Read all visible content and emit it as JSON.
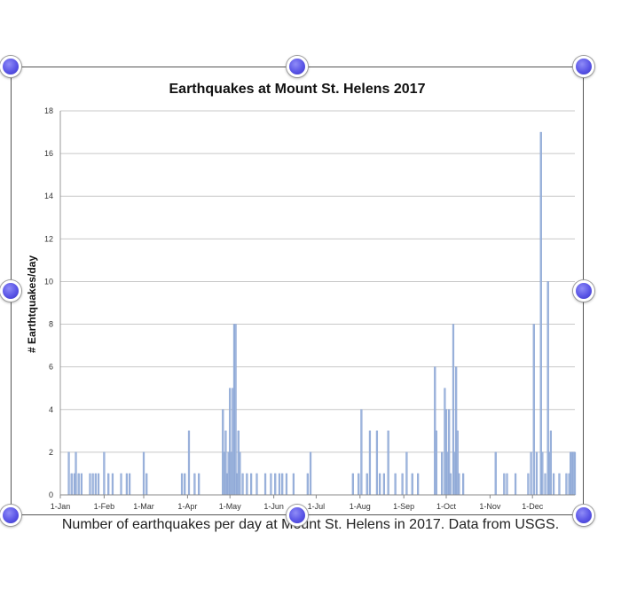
{
  "chart_data": {
    "type": "bar",
    "title": "Earthquakes at Mount St. Helens 2017",
    "xlabel": "",
    "ylabel": "# Earthtquakes/day",
    "ylim": [
      0,
      18
    ],
    "yticks": [
      0,
      2,
      4,
      6,
      8,
      10,
      12,
      14,
      16,
      18
    ],
    "xlim": [
      "2017-01-01",
      "2017-12-31"
    ],
    "xticks": [
      {
        "date": "2017-01-01",
        "label": "1-Jan"
      },
      {
        "date": "2017-02-01",
        "label": "1-Feb"
      },
      {
        "date": "2017-03-01",
        "label": "1-Mar"
      },
      {
        "date": "2017-04-01",
        "label": "1-Apr"
      },
      {
        "date": "2017-05-01",
        "label": "1-May"
      },
      {
        "date": "2017-06-01",
        "label": "1-Jun"
      },
      {
        "date": "2017-07-01",
        "label": "1-Jul"
      },
      {
        "date": "2017-08-01",
        "label": "1-Aug"
      },
      {
        "date": "2017-09-01",
        "label": "1-Sep"
      },
      {
        "date": "2017-10-01",
        "label": "1-Oct"
      },
      {
        "date": "2017-11-01",
        "label": "1-Nov"
      },
      {
        "date": "2017-12-01",
        "label": "1-Dec"
      }
    ],
    "grid": true,
    "color": "#9fb6dd",
    "points": [
      {
        "date": "2017-01-07",
        "count": 2
      },
      {
        "date": "2017-01-09",
        "count": 1
      },
      {
        "date": "2017-01-11",
        "count": 1
      },
      {
        "date": "2017-01-12",
        "count": 2
      },
      {
        "date": "2017-01-14",
        "count": 1
      },
      {
        "date": "2017-01-16",
        "count": 1
      },
      {
        "date": "2017-01-22",
        "count": 1
      },
      {
        "date": "2017-01-24",
        "count": 1
      },
      {
        "date": "2017-01-26",
        "count": 1
      },
      {
        "date": "2017-01-28",
        "count": 1
      },
      {
        "date": "2017-02-01",
        "count": 2
      },
      {
        "date": "2017-02-04",
        "count": 1
      },
      {
        "date": "2017-02-07",
        "count": 1
      },
      {
        "date": "2017-02-13",
        "count": 1
      },
      {
        "date": "2017-02-17",
        "count": 1
      },
      {
        "date": "2017-02-19",
        "count": 1
      },
      {
        "date": "2017-03-01",
        "count": 2
      },
      {
        "date": "2017-03-03",
        "count": 1
      },
      {
        "date": "2017-03-28",
        "count": 1
      },
      {
        "date": "2017-03-30",
        "count": 1
      },
      {
        "date": "2017-04-02",
        "count": 3
      },
      {
        "date": "2017-04-06",
        "count": 1
      },
      {
        "date": "2017-04-09",
        "count": 1
      },
      {
        "date": "2017-04-26",
        "count": 4
      },
      {
        "date": "2017-04-27",
        "count": 2
      },
      {
        "date": "2017-04-28",
        "count": 3
      },
      {
        "date": "2017-04-29",
        "count": 1
      },
      {
        "date": "2017-04-30",
        "count": 2
      },
      {
        "date": "2017-05-01",
        "count": 5
      },
      {
        "date": "2017-05-02",
        "count": 2
      },
      {
        "date": "2017-05-03",
        "count": 5
      },
      {
        "date": "2017-05-04",
        "count": 8
      },
      {
        "date": "2017-05-05",
        "count": 8
      },
      {
        "date": "2017-05-06",
        "count": 1
      },
      {
        "date": "2017-05-07",
        "count": 3
      },
      {
        "date": "2017-05-08",
        "count": 2
      },
      {
        "date": "2017-05-10",
        "count": 1
      },
      {
        "date": "2017-05-13",
        "count": 1
      },
      {
        "date": "2017-05-16",
        "count": 1
      },
      {
        "date": "2017-05-20",
        "count": 1
      },
      {
        "date": "2017-05-26",
        "count": 1
      },
      {
        "date": "2017-05-30",
        "count": 1
      },
      {
        "date": "2017-06-02",
        "count": 1
      },
      {
        "date": "2017-06-05",
        "count": 1
      },
      {
        "date": "2017-06-07",
        "count": 1
      },
      {
        "date": "2017-06-10",
        "count": 1
      },
      {
        "date": "2017-06-15",
        "count": 1
      },
      {
        "date": "2017-06-25",
        "count": 1
      },
      {
        "date": "2017-06-27",
        "count": 2
      },
      {
        "date": "2017-07-27",
        "count": 1
      },
      {
        "date": "2017-07-31",
        "count": 1
      },
      {
        "date": "2017-08-02",
        "count": 4
      },
      {
        "date": "2017-08-06",
        "count": 1
      },
      {
        "date": "2017-08-08",
        "count": 3
      },
      {
        "date": "2017-08-13",
        "count": 3
      },
      {
        "date": "2017-08-15",
        "count": 1
      },
      {
        "date": "2017-08-18",
        "count": 1
      },
      {
        "date": "2017-08-21",
        "count": 3
      },
      {
        "date": "2017-08-26",
        "count": 1
      },
      {
        "date": "2017-08-31",
        "count": 1
      },
      {
        "date": "2017-09-03",
        "count": 2
      },
      {
        "date": "2017-09-07",
        "count": 1
      },
      {
        "date": "2017-09-11",
        "count": 1
      },
      {
        "date": "2017-09-23",
        "count": 6
      },
      {
        "date": "2017-09-24",
        "count": 3
      },
      {
        "date": "2017-09-28",
        "count": 2
      },
      {
        "date": "2017-09-30",
        "count": 5
      },
      {
        "date": "2017-10-01",
        "count": 4
      },
      {
        "date": "2017-10-02",
        "count": 2
      },
      {
        "date": "2017-10-03",
        "count": 4
      },
      {
        "date": "2017-10-04",
        "count": 1
      },
      {
        "date": "2017-10-06",
        "count": 8
      },
      {
        "date": "2017-10-07",
        "count": 2
      },
      {
        "date": "2017-10-08",
        "count": 6
      },
      {
        "date": "2017-10-09",
        "count": 3
      },
      {
        "date": "2017-10-10",
        "count": 1
      },
      {
        "date": "2017-10-13",
        "count": 1
      },
      {
        "date": "2017-11-05",
        "count": 2
      },
      {
        "date": "2017-11-11",
        "count": 1
      },
      {
        "date": "2017-11-13",
        "count": 1
      },
      {
        "date": "2017-11-19",
        "count": 1
      },
      {
        "date": "2017-11-28",
        "count": 1
      },
      {
        "date": "2017-11-30",
        "count": 2
      },
      {
        "date": "2017-12-02",
        "count": 8
      },
      {
        "date": "2017-12-04",
        "count": 2
      },
      {
        "date": "2017-12-07",
        "count": 17
      },
      {
        "date": "2017-12-08",
        "count": 2
      },
      {
        "date": "2017-12-10",
        "count": 1
      },
      {
        "date": "2017-12-12",
        "count": 10
      },
      {
        "date": "2017-12-13",
        "count": 2
      },
      {
        "date": "2017-12-14",
        "count": 3
      },
      {
        "date": "2017-12-16",
        "count": 1
      },
      {
        "date": "2017-12-20",
        "count": 1
      },
      {
        "date": "2017-12-25",
        "count": 1
      },
      {
        "date": "2017-12-27",
        "count": 1
      },
      {
        "date": "2017-12-28",
        "count": 2
      },
      {
        "date": "2017-12-29",
        "count": 2
      },
      {
        "date": "2017-12-30",
        "count": 2
      },
      {
        "date": "2017-12-31",
        "count": 2
      }
    ]
  },
  "caption": "Number of earthquakes per day at Mount St. Helens in 2017. Data from USGS.",
  "selection": {
    "handle_color": "#5a55e6"
  }
}
